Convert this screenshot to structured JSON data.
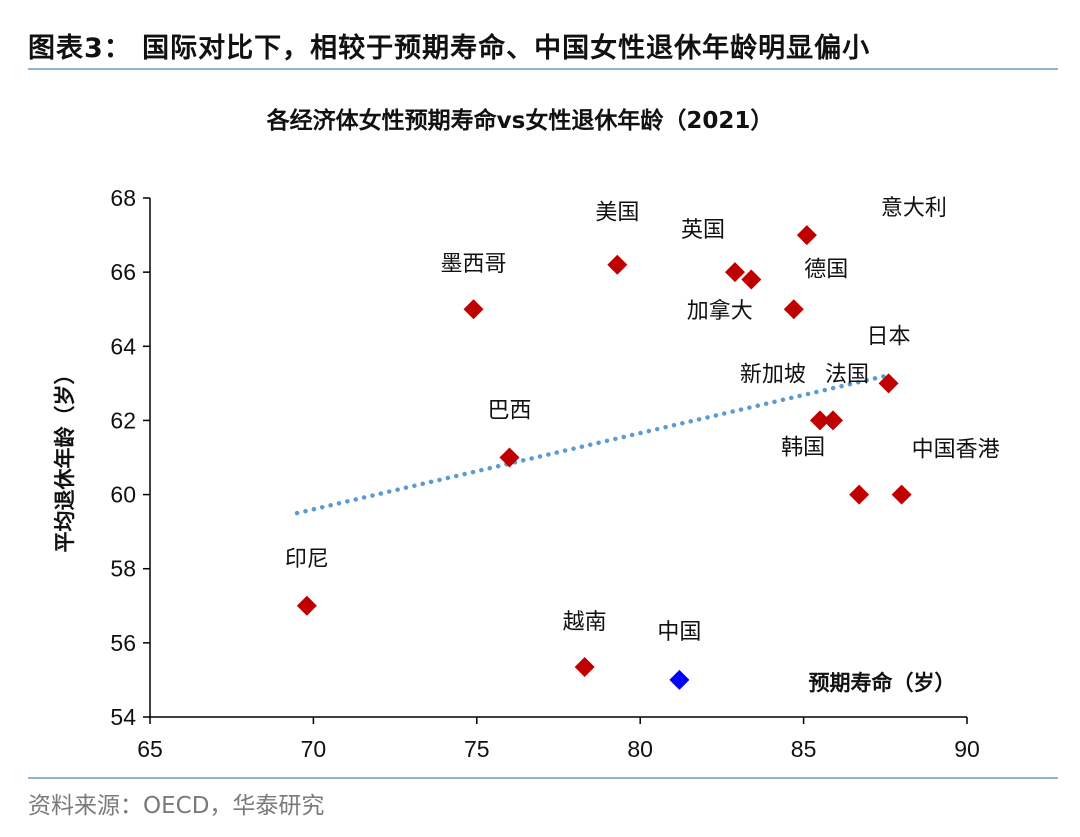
{
  "figure": {
    "title": "图表3：  国际对比下，相较于预期寿命、中国女性退休年龄明显偏小",
    "source": "资料来源：OECD，华泰研究"
  },
  "colors": {
    "marker": "#c00000",
    "highlight": "#0000ff",
    "trend": "#5b9bd5",
    "rule": "#8fb3d6"
  },
  "chart_data": {
    "type": "scatter",
    "title": "各经济体女性预期寿命vs女性退休年龄（2021）",
    "xlabel": "预期寿命（岁）",
    "ylabel": "平均退休年龄（岁）",
    "xlim": [
      65,
      90
    ],
    "ylim": [
      54,
      68
    ],
    "xticks": [
      65,
      70,
      75,
      80,
      85,
      90
    ],
    "yticks": [
      54,
      56,
      58,
      60,
      62,
      64,
      66,
      68
    ],
    "grid": false,
    "legend": "none",
    "points": [
      {
        "name": "墨西哥",
        "x": 74.9,
        "y": 65.0,
        "highlight": false
      },
      {
        "name": "美国",
        "x": 79.3,
        "y": 66.2,
        "highlight": false
      },
      {
        "name": "英国",
        "x": 82.9,
        "y": 66.0,
        "highlight": false
      },
      {
        "name": "德国",
        "x": 83.4,
        "y": 65.8,
        "highlight": false
      },
      {
        "name": "意大利",
        "x": 85.1,
        "y": 67.0,
        "highlight": false
      },
      {
        "name": "加拿大",
        "x": 84.7,
        "y": 65.0,
        "highlight": false
      },
      {
        "name": "日本",
        "x": 87.6,
        "y": 63.0,
        "highlight": false
      },
      {
        "name": "新加坡",
        "x": 85.5,
        "y": 62.0,
        "highlight": false
      },
      {
        "name": "法国",
        "x": 85.9,
        "y": 62.0,
        "highlight": false
      },
      {
        "name": "巴西",
        "x": 76.0,
        "y": 61.0,
        "highlight": false
      },
      {
        "name": "韩国",
        "x": 86.7,
        "y": 60.0,
        "highlight": false
      },
      {
        "name": "中国香港",
        "x": 88.0,
        "y": 60.0,
        "highlight": false
      },
      {
        "name": "印尼",
        "x": 69.8,
        "y": 57.0,
        "highlight": false
      },
      {
        "name": "越南",
        "x": 78.3,
        "y": 55.35,
        "highlight": false
      },
      {
        "name": "中国",
        "x": 81.2,
        "y": 55.0,
        "highlight": true
      }
    ],
    "trendline": {
      "type": "linear",
      "x": [
        69.5,
        87.5
      ],
      "y": [
        59.5,
        63.2
      ]
    }
  }
}
